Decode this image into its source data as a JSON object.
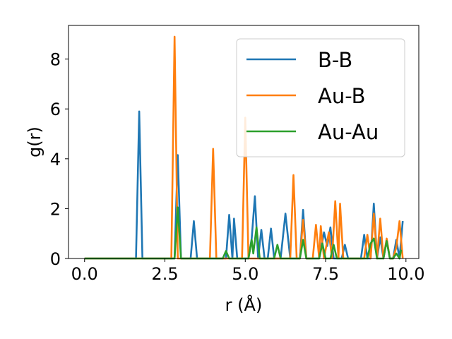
{
  "chart_data": {
    "type": "line",
    "title": "",
    "xlabel": "r (Å)",
    "ylabel": "g(r)",
    "xlim": [
      -0.5,
      10.4
    ],
    "ylim": [
      0,
      9.35
    ],
    "xticks": [
      0.0,
      2.5,
      5.0,
      7.5,
      10.0
    ],
    "xtick_labels": [
      "0.0",
      "2.5",
      "5.0",
      "7.5",
      "10.0"
    ],
    "yticks": [
      0,
      2,
      4,
      6,
      8
    ],
    "ytick_labels": [
      "0",
      "2",
      "4",
      "6",
      "8"
    ],
    "grid": false,
    "legend_position": "upper-right",
    "series": [
      {
        "name": "B-B",
        "color": "#1f77b4",
        "points": [
          [
            0.0,
            0
          ],
          [
            1.6,
            0
          ],
          [
            1.7,
            5.9
          ],
          [
            1.8,
            0
          ],
          [
            2.8,
            0
          ],
          [
            2.9,
            4.15
          ],
          [
            3.0,
            0
          ],
          [
            3.3,
            0
          ],
          [
            3.4,
            1.5
          ],
          [
            3.5,
            0
          ],
          [
            4.4,
            0
          ],
          [
            4.5,
            1.75
          ],
          [
            4.6,
            0
          ],
          [
            4.65,
            1.6
          ],
          [
            4.75,
            0
          ],
          [
            5.1,
            0
          ],
          [
            5.2,
            0.8
          ],
          [
            5.3,
            2.5
          ],
          [
            5.4,
            0
          ],
          [
            5.5,
            1.15
          ],
          [
            5.6,
            0
          ],
          [
            5.7,
            0
          ],
          [
            5.8,
            1.2
          ],
          [
            5.9,
            0
          ],
          [
            6.1,
            0
          ],
          [
            6.25,
            1.8
          ],
          [
            6.4,
            0
          ],
          [
            6.7,
            0
          ],
          [
            6.8,
            1.95
          ],
          [
            6.9,
            0
          ],
          [
            7.3,
            0
          ],
          [
            7.45,
            1.05
          ],
          [
            7.55,
            0.5
          ],
          [
            7.65,
            1.25
          ],
          [
            7.75,
            0
          ],
          [
            8.0,
            0
          ],
          [
            8.1,
            0.55
          ],
          [
            8.2,
            0
          ],
          [
            8.6,
            0
          ],
          [
            8.7,
            0.95
          ],
          [
            8.8,
            0
          ],
          [
            8.9,
            0
          ],
          [
            9.0,
            2.2
          ],
          [
            9.1,
            0
          ],
          [
            9.2,
            0.85
          ],
          [
            9.3,
            0
          ],
          [
            9.4,
            0.75
          ],
          [
            9.5,
            0
          ],
          [
            9.6,
            0
          ],
          [
            9.7,
            0.75
          ],
          [
            9.8,
            0
          ],
          [
            9.9,
            1.5
          ]
        ]
      },
      {
        "name": "Au-B",
        "color": "#ff7f0e",
        "points": [
          [
            0.0,
            0
          ],
          [
            2.7,
            0
          ],
          [
            2.8,
            8.9
          ],
          [
            2.9,
            0
          ],
          [
            3.9,
            0
          ],
          [
            4.0,
            4.4
          ],
          [
            4.1,
            0
          ],
          [
            4.9,
            0
          ],
          [
            5.0,
            5.65
          ],
          [
            5.1,
            0
          ],
          [
            6.4,
            0
          ],
          [
            6.5,
            3.35
          ],
          [
            6.6,
            0
          ],
          [
            6.7,
            0
          ],
          [
            6.8,
            1.55
          ],
          [
            6.9,
            0
          ],
          [
            7.1,
            0
          ],
          [
            7.2,
            1.35
          ],
          [
            7.3,
            0
          ],
          [
            7.35,
            1.3
          ],
          [
            7.45,
            0
          ],
          [
            7.6,
            1.05
          ],
          [
            7.7,
            0
          ],
          [
            7.8,
            2.3
          ],
          [
            7.9,
            0
          ],
          [
            7.95,
            2.2
          ],
          [
            8.05,
            0
          ],
          [
            8.7,
            0
          ],
          [
            8.8,
            0.95
          ],
          [
            8.9,
            0
          ],
          [
            9.0,
            1.8
          ],
          [
            9.1,
            0
          ],
          [
            9.2,
            1.6
          ],
          [
            9.3,
            0
          ],
          [
            9.4,
            0.8
          ],
          [
            9.5,
            0
          ],
          [
            9.6,
            0
          ],
          [
            9.7,
            0.45
          ],
          [
            9.8,
            1.5
          ],
          [
            9.9,
            0
          ]
        ]
      },
      {
        "name": "Au-Au",
        "color": "#2ca02c",
        "points": [
          [
            0.0,
            0
          ],
          [
            2.8,
            0
          ],
          [
            2.9,
            2.05
          ],
          [
            3.0,
            0
          ],
          [
            4.3,
            0
          ],
          [
            4.4,
            0.3
          ],
          [
            4.5,
            0
          ],
          [
            5.1,
            0
          ],
          [
            5.2,
            0.75
          ],
          [
            5.25,
            0.2
          ],
          [
            5.35,
            1.25
          ],
          [
            5.45,
            0
          ],
          [
            5.9,
            0
          ],
          [
            6.0,
            0.55
          ],
          [
            6.1,
            0
          ],
          [
            6.7,
            0
          ],
          [
            6.8,
            0.75
          ],
          [
            6.9,
            0
          ],
          [
            7.3,
            0
          ],
          [
            7.4,
            0.6
          ],
          [
            7.5,
            0
          ],
          [
            7.65,
            0
          ],
          [
            7.75,
            0.55
          ],
          [
            7.85,
            0
          ],
          [
            8.8,
            0
          ],
          [
            8.9,
            0.6
          ],
          [
            9.0,
            0.8
          ],
          [
            9.1,
            0
          ],
          [
            9.3,
            0
          ],
          [
            9.4,
            0.7
          ],
          [
            9.5,
            0
          ],
          [
            9.6,
            0
          ],
          [
            9.7,
            0.2
          ],
          [
            9.8,
            0
          ],
          [
            9.85,
            0.35
          ]
        ]
      }
    ]
  }
}
